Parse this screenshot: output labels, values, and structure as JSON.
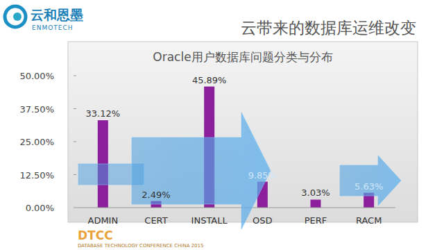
{
  "page": {
    "logo_text": "云和恩墨",
    "logo_subtext": "ENMOTECH",
    "heading": "云带来的数据库运维改变",
    "footer_brand": "DTCC",
    "footer": "DATABASE TECHNOLOGY CONFERENCE CHINA 2015"
  },
  "chart_data": {
    "type": "bar",
    "title": "Oracle用户数据库问题分类与分布",
    "categories": [
      "ADMIN",
      "CERT",
      "INSTALL",
      "OSD",
      "PERF",
      "RACM"
    ],
    "values": [
      33.12,
      2.49,
      45.89,
      9.85,
      3.03,
      5.63
    ],
    "value_labels": [
      "33.12%",
      "2.49%",
      "45.89%",
      "9.85%",
      "3.03%",
      "5.63%"
    ],
    "color": "#8b1f9c",
    "ylim": [
      0,
      50
    ],
    "yticks": [
      {
        "value": 0,
        "label": "0.00%"
      },
      {
        "value": 12.5,
        "label": "12.50%"
      },
      {
        "value": 25,
        "label": "25.00%"
      },
      {
        "value": 37.5,
        "label": "37.50%"
      },
      {
        "value": 50,
        "label": "50.00%"
      }
    ],
    "grid": false,
    "data_labels": true
  }
}
